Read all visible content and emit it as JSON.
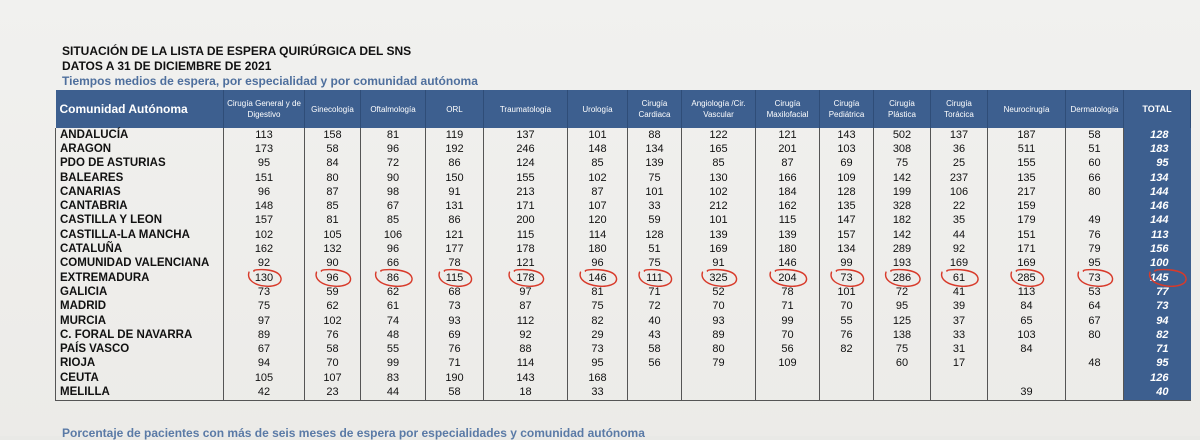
{
  "title": "SITUACIÓN DE LA LISTA DE ESPERA QUIRÚRGICA DEL SNS",
  "date_line": "DATOS A 31 DE DICIEMBRE DE 2021",
  "subtitle": "Tiempos medios de espera, por especialidad y por comunidad autónoma",
  "footer_title": "Porcentaje de pacientes con más de seis meses de espera por especialidades y comunidad autónoma",
  "headers": {
    "community": "Comunidad Autónoma",
    "specialties": [
      "Cirugía General y de Digestivo",
      "Ginecología",
      "Oftalmología",
      "ORL",
      "Traumatología",
      "Urología",
      "Cirugía Cardiaca",
      "Angiología /Cir. Vascular",
      "Cirugía Maxilofacial",
      "Cirugía Pediátrica",
      "Cirugía Plástica",
      "Cirugía Torácica",
      "Neurocirugía",
      "Dermatología"
    ],
    "total": "TOTAL"
  },
  "rows": [
    {
      "name": "ANDALUCÍA",
      "values": [
        "113",
        "158",
        "81",
        "119",
        "137",
        "101",
        "88",
        "122",
        "121",
        "143",
        "502",
        "137",
        "187",
        "58"
      ],
      "total": "128"
    },
    {
      "name": "ARAGON",
      "values": [
        "173",
        "58",
        "96",
        "192",
        "246",
        "148",
        "134",
        "165",
        "201",
        "103",
        "308",
        "36",
        "511",
        "51"
      ],
      "total": "183"
    },
    {
      "name": "PDO DE ASTURIAS",
      "values": [
        "95",
        "84",
        "72",
        "86",
        "124",
        "85",
        "139",
        "85",
        "87",
        "69",
        "75",
        "25",
        "155",
        "60"
      ],
      "total": "95"
    },
    {
      "name": "BALEARES",
      "values": [
        "151",
        "80",
        "90",
        "150",
        "155",
        "102",
        "75",
        "130",
        "166",
        "109",
        "142",
        "237",
        "135",
        "66"
      ],
      "total": "134"
    },
    {
      "name": "CANARIAS",
      "values": [
        "96",
        "87",
        "98",
        "91",
        "213",
        "87",
        "101",
        "102",
        "184",
        "128",
        "199",
        "106",
        "217",
        "80"
      ],
      "total": "144"
    },
    {
      "name": "CANTABRIA",
      "values": [
        "148",
        "85",
        "67",
        "131",
        "171",
        "107",
        "33",
        "212",
        "162",
        "135",
        "328",
        "22",
        "159",
        ""
      ],
      "total": "146"
    },
    {
      "name": "CASTILLA Y LEON",
      "values": [
        "157",
        "81",
        "85",
        "86",
        "200",
        "120",
        "59",
        "101",
        "115",
        "147",
        "182",
        "35",
        "179",
        "49"
      ],
      "total": "144"
    },
    {
      "name": "CASTILLA-LA MANCHA",
      "values": [
        "102",
        "105",
        "106",
        "121",
        "115",
        "114",
        "128",
        "139",
        "139",
        "157",
        "142",
        "44",
        "151",
        "76"
      ],
      "total": "113"
    },
    {
      "name": "CATALUÑA",
      "values": [
        "162",
        "132",
        "96",
        "177",
        "178",
        "180",
        "51",
        "169",
        "180",
        "134",
        "289",
        "92",
        "171",
        "79"
      ],
      "total": "156"
    },
    {
      "name": "COMUNIDAD VALENCIANA",
      "values": [
        "92",
        "90",
        "66",
        "78",
        "121",
        "96",
        "75",
        "91",
        "146",
        "99",
        "193",
        "169",
        "169",
        "95"
      ],
      "total": "100"
    },
    {
      "name": "EXTREMADURA",
      "values": [
        "130",
        "96",
        "86",
        "115",
        "178",
        "146",
        "111",
        "325",
        "204",
        "73",
        "286",
        "61",
        "285",
        "73"
      ],
      "total": "145"
    },
    {
      "name": "GALICIA",
      "values": [
        "73",
        "59",
        "62",
        "68",
        "97",
        "81",
        "71",
        "52",
        "78",
        "101",
        "72",
        "41",
        "113",
        "53"
      ],
      "total": "77"
    },
    {
      "name": "MADRID",
      "values": [
        "75",
        "62",
        "61",
        "73",
        "87",
        "75",
        "72",
        "70",
        "71",
        "70",
        "95",
        "39",
        "84",
        "64"
      ],
      "total": "73"
    },
    {
      "name": "MURCIA",
      "values": [
        "97",
        "102",
        "74",
        "93",
        "112",
        "82",
        "40",
        "93",
        "99",
        "55",
        "125",
        "37",
        "65",
        "67"
      ],
      "total": "94"
    },
    {
      "name": "C. FORAL DE NAVARRA",
      "values": [
        "89",
        "76",
        "48",
        "69",
        "92",
        "29",
        "43",
        "89",
        "70",
        "76",
        "138",
        "33",
        "103",
        "80"
      ],
      "total": "82"
    },
    {
      "name": "PAÍS VASCO",
      "values": [
        "67",
        "58",
        "55",
        "76",
        "88",
        "73",
        "58",
        "80",
        "56",
        "82",
        "75",
        "31",
        "84",
        ""
      ],
      "total": "71"
    },
    {
      "name": "RIOJA",
      "values": [
        "94",
        "70",
        "99",
        "71",
        "114",
        "95",
        "56",
        "79",
        "109",
        "",
        "60",
        "17",
        "",
        "48"
      ],
      "total": "95"
    },
    {
      "name": "CEUTA",
      "values": [
        "105",
        "107",
        "83",
        "190",
        "143",
        "168",
        "",
        "",
        "",
        "",
        "",
        "",
        "",
        ""
      ],
      "total": "126"
    },
    {
      "name": "MELILLA",
      "values": [
        "42",
        "23",
        "44",
        "58",
        "18",
        "33",
        "",
        "",
        "",
        "",
        "",
        "",
        "39",
        ""
      ],
      "total": "40"
    }
  ],
  "highlighted_row": "EXTREMADURA",
  "colors": {
    "header_bg": "#3d5f8f",
    "circle": "#d83a2a",
    "subtitle": "#4e6f9d"
  }
}
